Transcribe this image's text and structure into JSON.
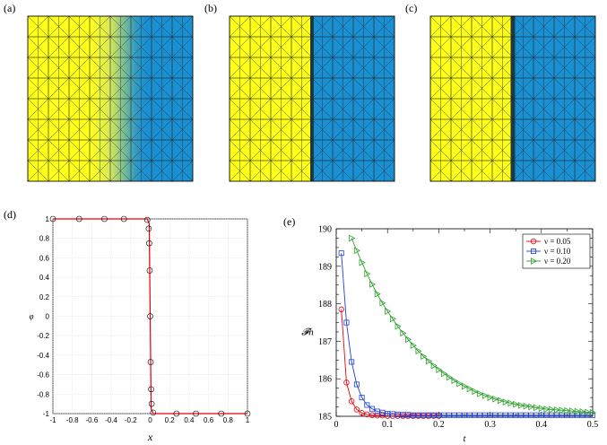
{
  "labels": {
    "a": "(a)",
    "b": "(b)",
    "c": "(c)",
    "d": "(d)",
    "e": "(e)"
  },
  "colors": {
    "yellow": "#ffff1a",
    "blue": "#1a8fd1",
    "mesh": "#1f2a30"
  },
  "mesh": {
    "cells": 8
  },
  "chart_data": [
    {
      "type": "line",
      "panel": "(d)",
      "xlabel": "x",
      "ylabel": "φ",
      "xlim": [
        -1,
        1
      ],
      "ylim": [
        -1,
        1
      ],
      "xticks": [
        "-1",
        "-0.8",
        "-0.6",
        "-0.4",
        "-0.2",
        "0",
        "0.2",
        "0.4",
        "0.6",
        "0.8",
        "1"
      ],
      "yticks": [
        "1",
        "0.8",
        "0.6",
        "0.4",
        "0.2",
        "0",
        "-0.2",
        "-0.4",
        "-0.6",
        "-0.8",
        "-1"
      ],
      "series": [
        {
          "color": "#e8000b",
          "x": [
            -1,
            -0.03,
            -0.01,
            0.0,
            0.01,
            0.03,
            1
          ],
          "y": [
            1,
            1,
            0.95,
            0,
            -0.95,
            -1,
            -1
          ]
        },
        {
          "color": "#000000",
          "marker": "circle",
          "x": [
            -1,
            -0.73,
            -0.47,
            -0.27,
            -0.03,
            -0.015,
            -0.01,
            -0.005,
            0,
            0.005,
            0.01,
            0.015,
            0.03,
            0.27,
            0.47,
            0.73,
            1
          ],
          "y": [
            1,
            1,
            1,
            1,
            0.99,
            0.9,
            0.75,
            0.47,
            0,
            -0.47,
            -0.75,
            -0.9,
            -0.99,
            -1,
            -1,
            -1,
            -1
          ]
        }
      ]
    },
    {
      "type": "line",
      "panel": "(e)",
      "xlabel": "t",
      "ylabel": "𝓕h",
      "xlim": [
        0,
        0.5
      ],
      "ylim": [
        185,
        190
      ],
      "xticks": [
        "0",
        "0.1",
        "0.2",
        "0.3",
        "0.4",
        "0.5"
      ],
      "yticks": [
        "185",
        "186",
        "187",
        "188",
        "189",
        "190"
      ],
      "legend_position": "top-right",
      "series": [
        {
          "name": "ν = 0.05",
          "color": "#e8000b",
          "marker": "circle",
          "x": [
            0.01,
            0.02,
            0.03,
            0.04,
            0.05,
            0.06,
            0.07,
            0.08,
            0.09,
            0.1,
            0.11,
            0.12,
            0.13,
            0.14,
            0.15,
            0.16,
            0.17,
            0.18,
            0.19,
            0.2
          ],
          "y": [
            187.85,
            185.9,
            185.4,
            185.18,
            185.09,
            185.05,
            185.03,
            185.02,
            185.02,
            185.01,
            185.01,
            185.01,
            185.01,
            185.01,
            185.01,
            185.01,
            185.01,
            185.01,
            185.01,
            185.01
          ]
        },
        {
          "name": "ν = 0.10",
          "color": "#1f3fd6",
          "marker": "square",
          "x": [
            0.01,
            0.02,
            0.03,
            0.04,
            0.05,
            0.06,
            0.07,
            0.08,
            0.09,
            0.1,
            0.11,
            0.12,
            0.13,
            0.14,
            0.15,
            0.16,
            0.17,
            0.18,
            0.19,
            0.2,
            0.21,
            0.22,
            0.23,
            0.24,
            0.25,
            0.26,
            0.27,
            0.28,
            0.29,
            0.3,
            0.31,
            0.32,
            0.33,
            0.34,
            0.35,
            0.36,
            0.37,
            0.38,
            0.39,
            0.4,
            0.41,
            0.42,
            0.43,
            0.44,
            0.45,
            0.46,
            0.47,
            0.48,
            0.49,
            0.5
          ],
          "y": [
            189.35,
            187.5,
            186.45,
            185.85,
            185.5,
            185.3,
            185.2,
            185.13,
            185.1,
            185.07,
            185.06,
            185.05,
            185.04,
            185.04,
            185.03,
            185.03,
            185.03,
            185.03,
            185.03,
            185.03,
            185.03,
            185.03,
            185.03,
            185.03,
            185.03,
            185.03,
            185.03,
            185.03,
            185.03,
            185.03,
            185.03,
            185.03,
            185.03,
            185.03,
            185.03,
            185.03,
            185.03,
            185.03,
            185.03,
            185.03,
            185.03,
            185.03,
            185.03,
            185.03,
            185.03,
            185.03,
            185.03,
            185.03,
            185.03,
            185.03
          ]
        },
        {
          "name": "ν = 0.20",
          "color": "#2ca02c",
          "marker": "triangle-right",
          "x": [
            0.03,
            0.04,
            0.05,
            0.06,
            0.07,
            0.08,
            0.09,
            0.1,
            0.11,
            0.12,
            0.13,
            0.14,
            0.15,
            0.16,
            0.17,
            0.18,
            0.19,
            0.2,
            0.21,
            0.22,
            0.23,
            0.24,
            0.25,
            0.26,
            0.27,
            0.28,
            0.29,
            0.3,
            0.31,
            0.32,
            0.33,
            0.34,
            0.35,
            0.36,
            0.37,
            0.38,
            0.39,
            0.4,
            0.41,
            0.42,
            0.43,
            0.44,
            0.45,
            0.46,
            0.47,
            0.48,
            0.49,
            0.5
          ],
          "y": [
            189.75,
            189.42,
            189.1,
            188.8,
            188.52,
            188.26,
            188.02,
            187.8,
            187.6,
            187.4,
            187.22,
            187.05,
            186.89,
            186.74,
            186.6,
            186.47,
            186.35,
            186.24,
            186.14,
            186.04,
            185.95,
            185.87,
            185.8,
            185.73,
            185.66,
            185.6,
            185.55,
            185.5,
            185.46,
            185.42,
            185.38,
            185.35,
            185.32,
            185.29,
            185.27,
            185.25,
            185.23,
            185.21,
            185.19,
            185.18,
            185.17,
            185.16,
            185.15,
            185.14,
            185.13,
            185.12,
            185.11,
            185.1
          ]
        }
      ]
    }
  ]
}
